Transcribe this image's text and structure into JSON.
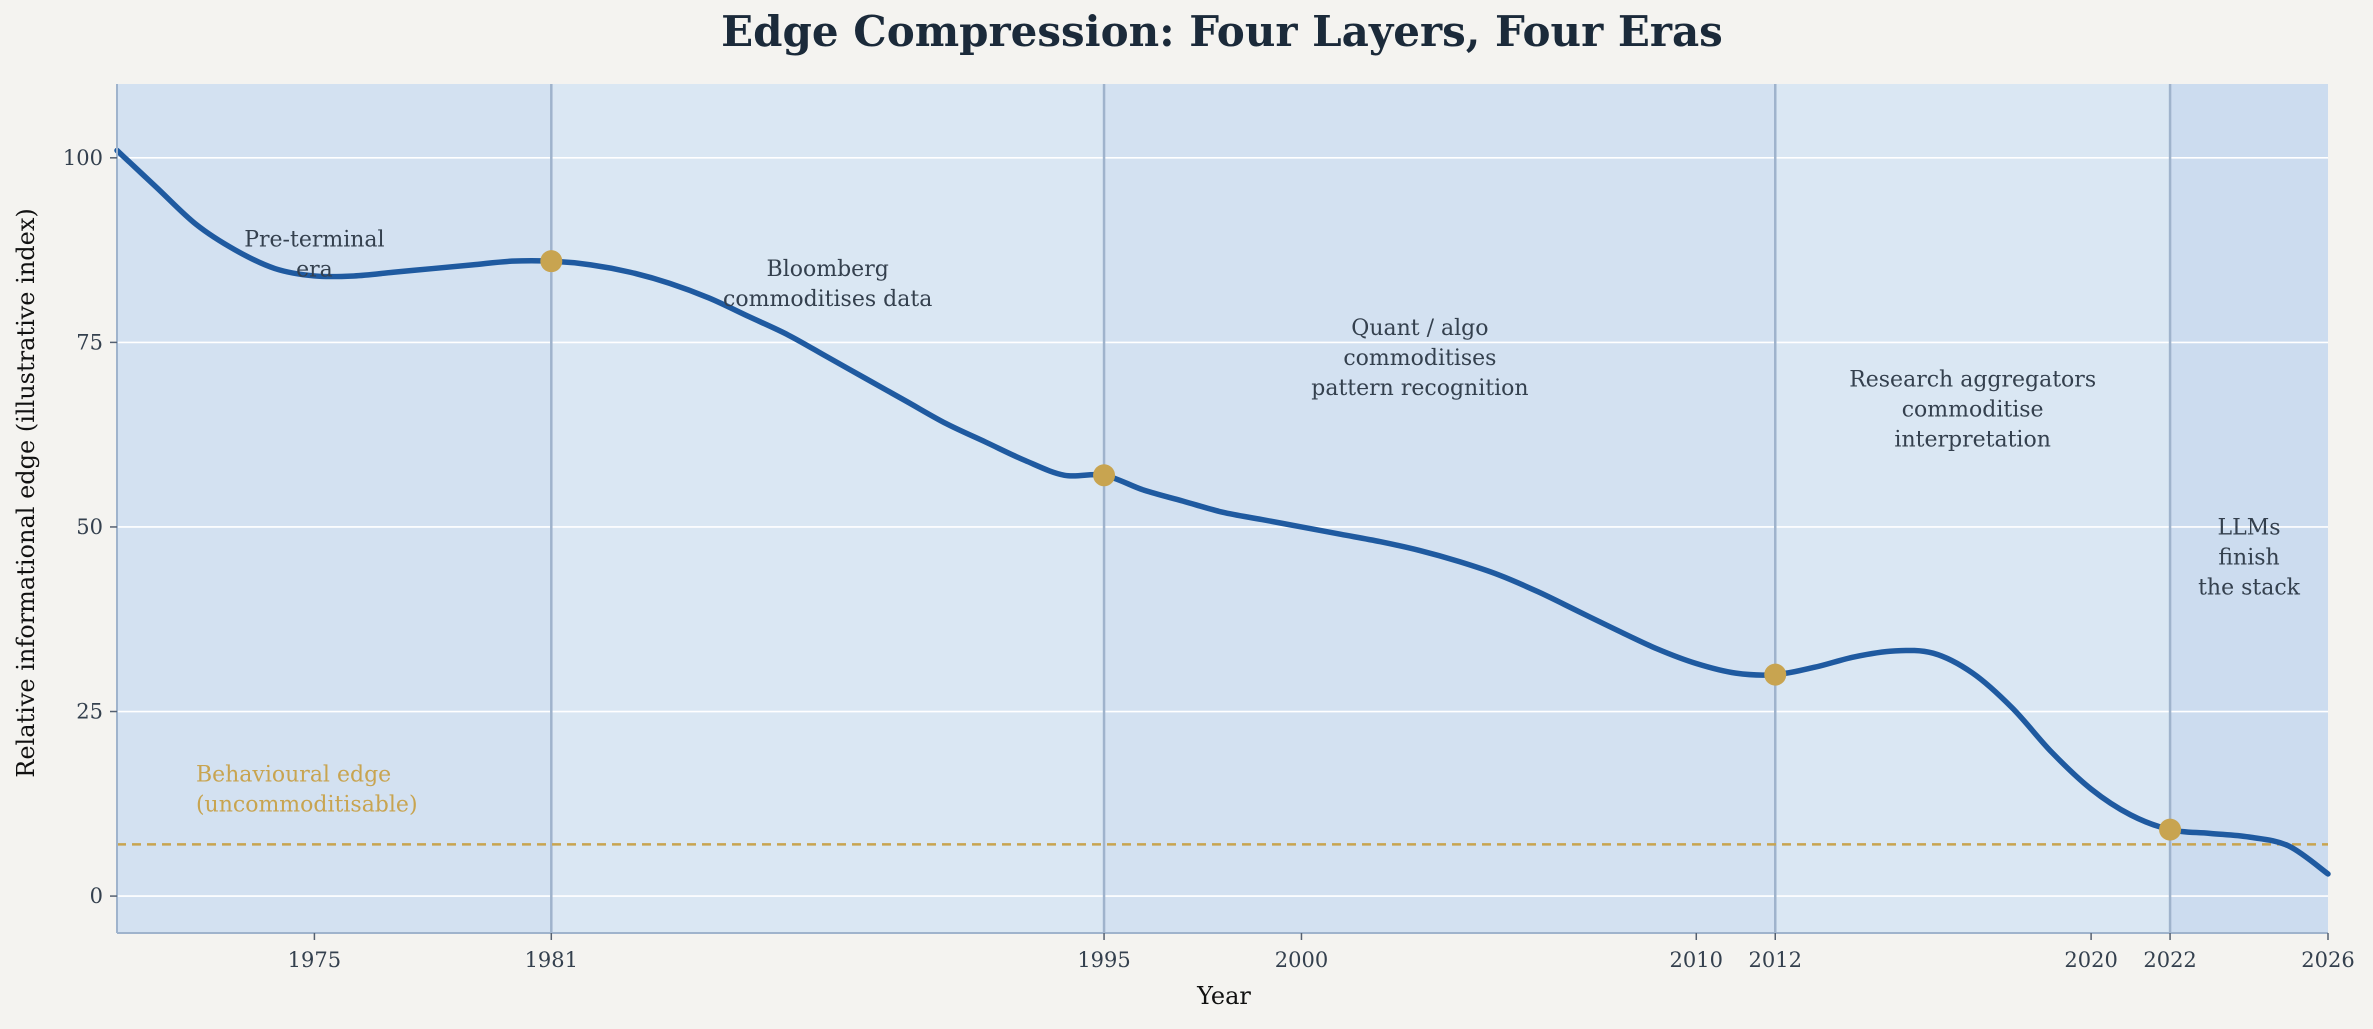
{
  "chart_data": {
    "type": "line",
    "title": "Edge Compression: Four Layers, Four Eras",
    "xlabel": "Year",
    "ylabel": "Relative informational edge (illustrative index)",
    "xlim": [
      1970,
      2026
    ],
    "ylim": [
      -5,
      110
    ],
    "grid": "horizontal",
    "x_ticks": [
      1975,
      1981,
      1995,
      2000,
      2010,
      2012,
      2020,
      2022,
      2026
    ],
    "y_ticks": [
      0,
      25,
      50,
      75,
      100
    ],
    "series": [
      {
        "color": "#1f5aa0",
        "x": [
          1970,
          1971,
          1972,
          1973,
          1974,
          1975,
          1976,
          1977,
          1978,
          1979,
          1980,
          1981,
          1982,
          1983,
          1984,
          1985,
          1986,
          1987,
          1988,
          1989,
          1990,
          1991,
          1992,
          1993,
          1994,
          1995,
          1996,
          1997,
          1998,
          1999,
          2000,
          2001,
          2002,
          2003,
          2004,
          2005,
          2006,
          2007,
          2008,
          2009,
          2010,
          2011,
          2012,
          2013,
          2014,
          2015,
          2016,
          2017,
          2018,
          2019,
          2020,
          2021,
          2022,
          2023,
          2024,
          2025,
          2026
        ],
        "values": [
          101,
          96,
          91,
          87.5,
          85,
          84,
          84,
          84.5,
          85,
          85.5,
          86,
          86,
          85.5,
          84.5,
          83,
          81,
          78.5,
          76,
          73,
          70,
          67,
          64,
          61.5,
          59,
          57,
          57,
          55,
          53.5,
          52,
          51,
          50,
          49,
          48,
          46.8,
          45.3,
          43.5,
          41.2,
          38.6,
          36,
          33.5,
          31.5,
          30.2,
          30,
          31,
          32.4,
          33.2,
          32.9,
          30.2,
          25.5,
          19.5,
          14.5,
          11,
          9,
          8.5,
          8,
          6.8,
          3
        ]
      }
    ],
    "milestones": [
      {
        "x": 1981,
        "y": 86
      },
      {
        "x": 1995,
        "y": 57
      },
      {
        "x": 2012,
        "y": 30
      },
      {
        "x": 2022,
        "y": 9
      }
    ],
    "eras": [
      {
        "start": 1970,
        "end": 1981,
        "label": [
          "Pre-terminal",
          "era"
        ],
        "label_x": 1975,
        "label_y": 88
      },
      {
        "start": 1981,
        "end": 1995,
        "label": [
          "Bloomberg",
          "commoditises data"
        ],
        "label_x": 1988,
        "label_y": 84
      },
      {
        "start": 1995,
        "end": 2012,
        "label": [
          "Quant / algo",
          "commoditises",
          "pattern recognition"
        ],
        "label_x": 2003,
        "label_y": 76
      },
      {
        "start": 2012,
        "end": 2022,
        "label": [
          "Research aggregators",
          "commoditise",
          "interpretation"
        ],
        "label_x": 2017,
        "label_y": 69
      },
      {
        "start": 2022,
        "end": 2026,
        "label": [
          "LLMs",
          "finish",
          "the stack"
        ],
        "label_x": 2024,
        "label_y": 49
      }
    ],
    "floor": {
      "y": 7,
      "label": [
        "Behavioural edge",
        "(uncommoditisable)"
      ],
      "label_x": 1972,
      "label_y": 15.5,
      "color": "#c8a450"
    },
    "colors": {
      "line": "#1f5aa0",
      "marker": "#c8a450",
      "era_shade_a": "#d3e1f1",
      "era_shade_b": "#dae7f3",
      "era_shade_last": "#ccdcef",
      "era_divider": "#9fb3cc",
      "grid": "#ffffff",
      "text": "#34404e",
      "title": "#1b2a3a"
    }
  }
}
